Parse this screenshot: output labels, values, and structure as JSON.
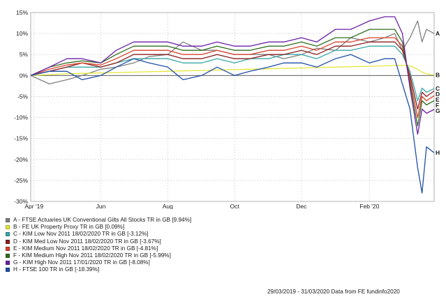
{
  "chart_data": {
    "type": "line",
    "title": "",
    "xlabel": "",
    "ylabel": "",
    "ylim": [
      -30,
      15
    ],
    "yticks": [
      "15%",
      "10%",
      "5%",
      "0%",
      "-5%",
      "-10%",
      "-15%",
      "-20%",
      "-25%",
      "-30%"
    ],
    "ytick_values": [
      15,
      10,
      5,
      0,
      -5,
      -10,
      -15,
      -20,
      -25,
      -30
    ],
    "xlim": [
      "2019-03-29",
      "2020-03-31"
    ],
    "xticks": [
      {
        "label": "Apr '19",
        "date": "2019-04-01"
      },
      {
        "label": "Jun",
        "date": "2019-06-01"
      },
      {
        "label": "Aug",
        "date": "2019-08-01"
      },
      {
        "label": "Oct",
        "date": "2019-10-01"
      },
      {
        "label": "Dec",
        "date": "2019-12-01"
      },
      {
        "label": "Feb '20",
        "date": "2020-02-01"
      }
    ],
    "grid": true,
    "x": [
      "2019-03-29",
      "2019-04-15",
      "2019-05-01",
      "2019-05-15",
      "2019-06-01",
      "2019-06-15",
      "2019-07-01",
      "2019-07-15",
      "2019-08-01",
      "2019-08-15",
      "2019-09-01",
      "2019-09-15",
      "2019-10-01",
      "2019-10-15",
      "2019-11-01",
      "2019-11-15",
      "2019-12-01",
      "2019-12-15",
      "2020-01-01",
      "2020-01-15",
      "2020-02-01",
      "2020-02-15",
      "2020-02-24",
      "2020-03-02",
      "2020-03-09",
      "2020-03-16",
      "2020-03-20",
      "2020-03-24",
      "2020-03-31"
    ],
    "series": [
      {
        "letter": "A",
        "name": "A - FTSE Actuaries UK Conventional Gilts All Stocks TR in GB [9.94%]",
        "color": "#7f7f7f",
        "values": [
          0,
          -2,
          -1,
          0,
          1.5,
          2,
          3,
          4.5,
          5,
          8,
          6,
          6,
          5,
          5,
          5,
          4,
          5,
          6.5,
          6,
          9,
          8,
          9,
          10,
          6,
          9,
          13,
          8,
          11,
          10
        ]
      },
      {
        "letter": "B",
        "name": "B - FE UK Property Proxy TR in GB [0.09%]",
        "color": "#e6e63a",
        "values": [
          0,
          0.2,
          0.4,
          0.5,
          0.6,
          0.7,
          0.8,
          0.9,
          1,
          1.1,
          1.2,
          1.3,
          1.4,
          1.5,
          1.6,
          1.7,
          1.8,
          1.9,
          2,
          2.1,
          2.2,
          2.3,
          2.4,
          2.4,
          2.3,
          1.5,
          0.8,
          0.4,
          0.1
        ]
      },
      {
        "letter": "C",
        "name": "C - KIM Low Nov 2011  18/02/2020 TR in GB [-3.12%]",
        "color": "#3aa6a6",
        "values": [
          0,
          1,
          2,
          2,
          2,
          3,
          4,
          4,
          4,
          3,
          3,
          4,
          3,
          4,
          4,
          5,
          5,
          4,
          6,
          6,
          7,
          7,
          7,
          5,
          1,
          -6,
          -3,
          -4,
          -3.12
        ]
      },
      {
        "letter": "D",
        "name": "D - KIM Med Low Nov 2011  18/02/2020 TR in GB [-3.67%]",
        "color": "#8b1e1e",
        "values": [
          0,
          1,
          2,
          3,
          2,
          3,
          5,
          5,
          5,
          4,
          4,
          5,
          4,
          4,
          5,
          5,
          6,
          5,
          7,
          7,
          8,
          8,
          8,
          6,
          0,
          -8,
          -4,
          -5,
          -3.67
        ]
      },
      {
        "letter": "E",
        "name": "E - KIM Medium Nov 2011  18/02/2020 TR in GB [-4.81%]",
        "color": "#d9412b",
        "values": [
          0,
          1.5,
          2.5,
          3,
          2.5,
          4,
          6,
          6,
          6,
          5,
          5,
          6,
          5,
          5,
          6,
          6,
          7,
          6,
          8,
          8,
          9,
          9,
          9,
          7,
          -1,
          -10,
          -5,
          -6,
          -4.81
        ]
      },
      {
        "letter": "F",
        "name": "F - KIM Medium High Nov 2011  18/02/2020 TR in GB [-5.99%]",
        "color": "#2f6e1e",
        "values": [
          0,
          2,
          3,
          3.5,
          3,
          5,
          7,
          7,
          7,
          6,
          6,
          7,
          6,
          6,
          7,
          7,
          8,
          7,
          9,
          9,
          11,
          11,
          11,
          8,
          -2,
          -12,
          -6,
          -7,
          -5.99
        ]
      },
      {
        "letter": "G",
        "name": "G - KIM High Nov 2011  17/01/2020 TR in GB [-8.08%]",
        "color": "#6a1fa6",
        "values": [
          0,
          2,
          4,
          4,
          3,
          6,
          8,
          8,
          8,
          7,
          7,
          8,
          7,
          7,
          8,
          8,
          9,
          8,
          11,
          11,
          13,
          14,
          14,
          10,
          -3,
          -14,
          -8,
          -9,
          -8.08
        ]
      },
      {
        "letter": "H",
        "name": "H - FTSE 100 TR in GB [-18.39%]",
        "color": "#1f4fa8",
        "values": [
          0,
          1,
          1,
          -1,
          0,
          2,
          4,
          3,
          2,
          -1,
          0,
          2,
          0,
          1,
          2,
          3,
          3,
          2,
          4,
          5,
          3,
          4,
          4,
          -2,
          -8,
          -22,
          -28,
          -17,
          -18.39
        ]
      }
    ]
  },
  "footer": {
    "source": "29/03/2019 - 31/03/2020 Data from FE fundinfo2020"
  }
}
